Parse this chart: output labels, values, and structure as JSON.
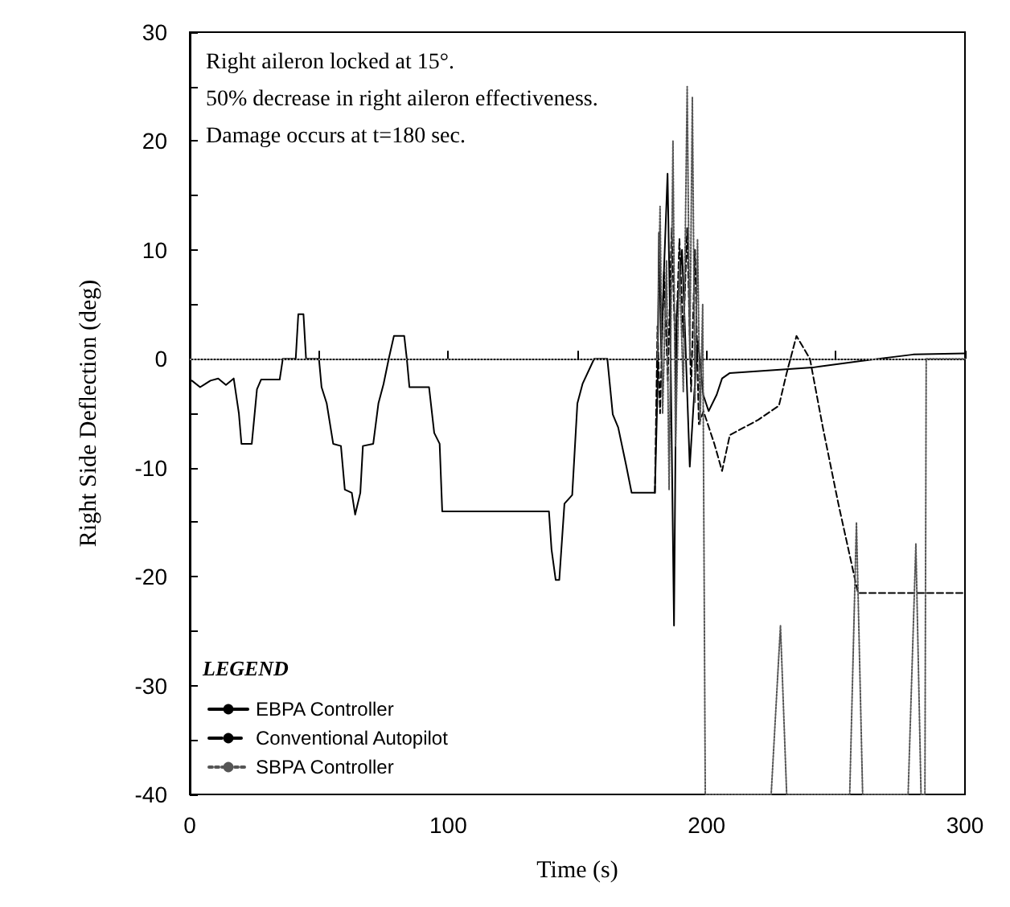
{
  "chart_data": {
    "type": "line",
    "xlabel": "Time (s)",
    "ylabel": "Right Side Deflection (deg)",
    "annotations": [
      "Right aileron locked at 15°.",
      "50% decrease in right aileron effectiveness.",
      "Damage occurs at t=180 sec."
    ],
    "xlim": [
      0,
      300
    ],
    "xticks": [
      0,
      {
        "value": 50,
        "label": null
      },
      100,
      {
        "value": 150,
        "label": null
      },
      200,
      {
        "value": 250,
        "label": null
      },
      300
    ],
    "ylim": [
      -40,
      30
    ],
    "yticks": [
      -40,
      {
        "value": -35,
        "label": null
      },
      -30,
      {
        "value": -25,
        "label": null
      },
      -20,
      {
        "value": -15,
        "label": null
      },
      -10,
      {
        "value": -5,
        "label": null
      },
      0,
      {
        "value": 5,
        "label": null
      },
      10,
      {
        "value": 15,
        "label": null
      },
      20,
      {
        "value": 25,
        "label": null
      },
      30
    ],
    "grid": false,
    "legend": "bottom left",
    "legend_title": "LEGEND",
    "marker": "none",
    "ref_lines": [
      {
        "axis": "y",
        "value": 0,
        "label": null,
        "color": "#888888",
        "line_style": "dotted"
      }
    ],
    "series": [
      {
        "name": "EBPA Controller",
        "color": "#000000",
        "line_style": "solid",
        "x": [
          0.8,
          4,
          8,
          11,
          14,
          17,
          19,
          20,
          24,
          26,
          27.6,
          34.8,
          36,
          41,
          42,
          44,
          45,
          50,
          51,
          53,
          55.5,
          58.5,
          60,
          62.7,
          64,
          66,
          67,
          71,
          73,
          75,
          77,
          79,
          83,
          84,
          85,
          92.6,
          94.6,
          96.7,
          97.7,
          139,
          140,
          141.6,
          143,
          145,
          148,
          149,
          150,
          152,
          156.5,
          161.6,
          163.7,
          165.8,
          168.9,
          171,
          180,
          181,
          181.6,
          182.5,
          183.5,
          184.9,
          186,
          187.4,
          188.4,
          190.5,
          191.5,
          193.5,
          195.2,
          196.7,
          198.7,
          200.8,
          203.9,
          206,
          209,
          241,
          259.6,
          280,
          300
        ],
        "values": [
          -2,
          -2.6,
          -2,
          -1.8,
          -2.4,
          -1.8,
          -5,
          -7.8,
          -7.8,
          -2.8,
          -1.9,
          -1.9,
          0,
          0,
          4.1,
          4.1,
          0,
          0,
          -2.6,
          -4.1,
          -7.8,
          -8,
          -12,
          -12.3,
          -14.3,
          -12.3,
          -8,
          -7.8,
          -4.1,
          -2.3,
          0,
          2.1,
          2.1,
          0,
          -2.6,
          -2.6,
          -6.8,
          -7.8,
          -14,
          -14,
          -17.5,
          -20.3,
          -20.3,
          -13.3,
          -12.5,
          -8.3,
          -4.1,
          -2.3,
          0,
          0,
          -5.1,
          -6.3,
          -9.8,
          -12.3,
          -12.3,
          -3,
          11.6,
          0,
          8,
          17,
          2,
          -24.5,
          4,
          10,
          3.6,
          -9.9,
          -3.3,
          1.6,
          -3.3,
          -4.8,
          -3.3,
          -1.8,
          -1.3,
          -0.8,
          -0.2,
          0.4,
          0.5
        ]
      },
      {
        "name": "Conventional Autopilot",
        "color": "#000000",
        "line_style": "dashed",
        "x": [
          180,
          181,
          182,
          183.5,
          185,
          186.5,
          188,
          189.5,
          191,
          192.5,
          194,
          195.5,
          197,
          198.8,
          203,
          206,
          209,
          220,
          228,
          231,
          234.8,
          240,
          245,
          251,
          258.6,
          300
        ],
        "values": [
          -12.3,
          3,
          -5,
          8,
          -2,
          12,
          0,
          11,
          2,
          12,
          -3,
          10,
          -6,
          -4.8,
          -7.8,
          -10.3,
          -7,
          -5.6,
          -4.3,
          -1.3,
          2.1,
          0,
          -6.3,
          -13.3,
          -21.5,
          -21.5
        ]
      },
      {
        "name": "SBPA Controller",
        "color": "#555555",
        "line_style": "dotted",
        "x": [
          180,
          181,
          182,
          183,
          184.5,
          185.5,
          187,
          188,
          189.5,
          191,
          192.5,
          193.5,
          194.5,
          195.5,
          196.5,
          197.5,
          198.5,
          199.5,
          225,
          228.6,
          231,
          255.4,
          258,
          260.4,
          278,
          281,
          283,
          284.5,
          285,
          300
        ],
        "values": [
          0,
          0,
          14,
          -5,
          9,
          -12,
          20,
          -8,
          9,
          -3,
          25,
          0,
          24,
          -4,
          11,
          -6,
          5,
          -40,
          -40,
          -24.5,
          -40,
          -40,
          -15,
          -40,
          -40,
          -17,
          -40,
          -40,
          0,
          0
        ]
      }
    ]
  }
}
